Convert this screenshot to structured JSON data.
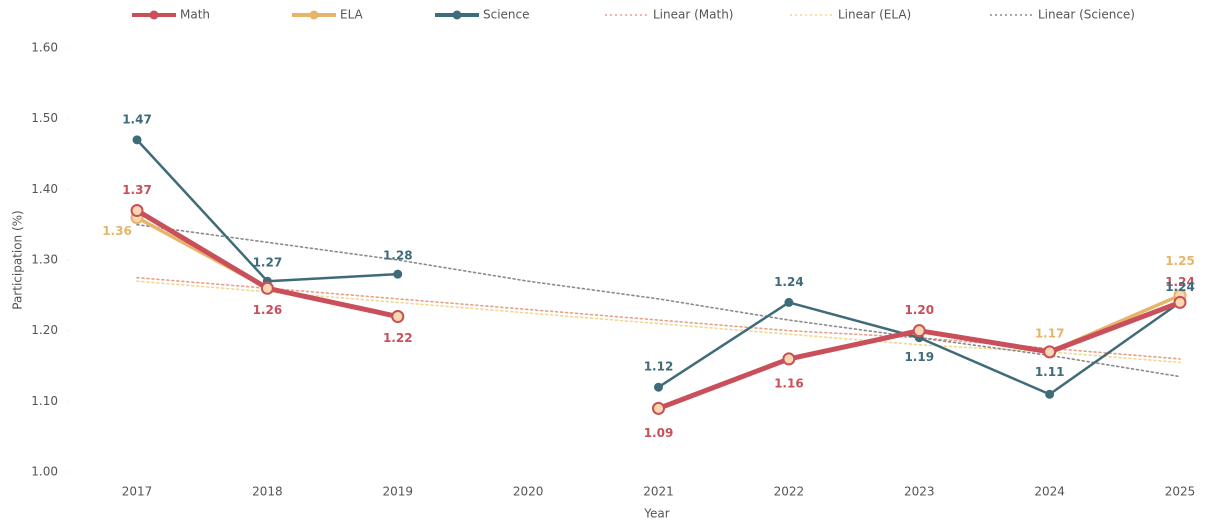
{
  "chart_data": {
    "type": "line",
    "x_label": "Year",
    "y_label": "Participation (%)",
    "categories": [
      "2017",
      "2018",
      "2019",
      "2020",
      "2021",
      "2022",
      "2023",
      "2024",
      "2025"
    ],
    "ylim": [
      1.0,
      1.6
    ],
    "yticks": [
      {
        "value": 1.0,
        "label": "1.00"
      },
      {
        "value": 1.1,
        "label": "1.10"
      },
      {
        "value": 1.2,
        "label": "1.20"
      },
      {
        "value": 1.3,
        "label": "1.30"
      },
      {
        "value": 1.4,
        "label": "1.40"
      },
      {
        "value": 1.5,
        "label": "1.50"
      },
      {
        "value": 1.6,
        "label": "1.60"
      }
    ],
    "legend": "top",
    "series": [
      {
        "name": "Math",
        "color": "#c9505a",
        "values": [
          1.37,
          1.26,
          1.22,
          null,
          1.09,
          1.16,
          1.2,
          1.17,
          1.24
        ],
        "value_labels": [
          "1.37",
          "1.26",
          "1.22",
          null,
          "1.09",
          "1.16",
          "1.20",
          null,
          "1.24"
        ]
      },
      {
        "name": "ELA",
        "color": "#e6b56a",
        "values": [
          1.36,
          1.26,
          1.22,
          null,
          1.09,
          1.16,
          1.2,
          1.17,
          1.25
        ],
        "value_labels": [
          "1.36",
          null,
          null,
          null,
          null,
          null,
          null,
          "1.17",
          "1.25"
        ]
      },
      {
        "name": "Science",
        "color": "#3f6b7a",
        "values": [
          1.47,
          1.27,
          1.28,
          null,
          1.12,
          1.24,
          1.19,
          1.11,
          1.24
        ],
        "value_labels": [
          "1.47",
          "1.27",
          "1.28",
          null,
          "1.12",
          "1.24",
          "1.19",
          "1.11",
          "1.24"
        ]
      },
      {
        "name": "Linear (Math)",
        "color": "#e8a08a",
        "dashed": true,
        "values": [
          1.275,
          1.26,
          1.245,
          1.23,
          1.215,
          1.2,
          1.19,
          1.175,
          1.16
        ]
      },
      {
        "name": "Linear (ELA)",
        "color": "#f0d890",
        "dashed": true,
        "values": [
          1.27,
          1.255,
          1.24,
          1.225,
          1.21,
          1.195,
          1.18,
          1.17,
          1.155
        ]
      },
      {
        "name": "Linear (Science)",
        "color": "#8a8a8a",
        "dashed": true,
        "values": [
          1.35,
          1.325,
          1.3,
          1.27,
          1.245,
          1.215,
          1.19,
          1.165,
          1.135
        ]
      }
    ]
  }
}
